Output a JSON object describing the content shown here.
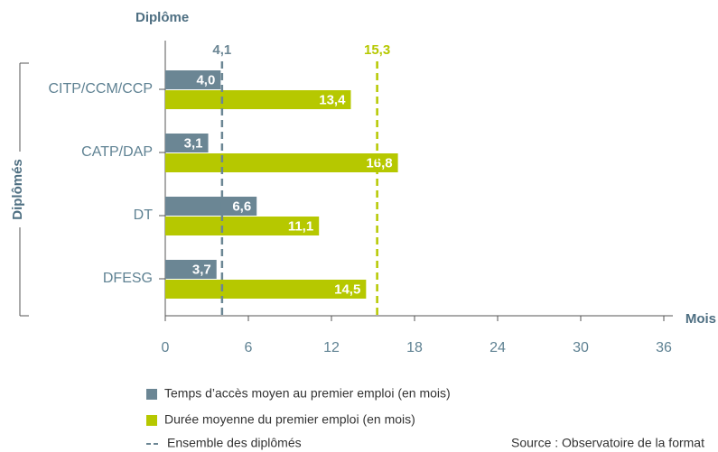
{
  "chart_data": {
    "type": "bar",
    "orientation": "horizontal",
    "title": "Diplôme",
    "y_label": "Diplômés",
    "x_label": "Mois",
    "categories": [
      "CITP/CCM/CCP",
      "CATP/DAP",
      "DT",
      "DFESG"
    ],
    "series": [
      {
        "name": "Temps d’accès moyen au premier emploi (en mois)",
        "color": "#6b8694",
        "values": [
          4.0,
          3.1,
          6.6,
          3.7
        ],
        "value_labels": [
          "4,0",
          "3,1",
          "6,6",
          "3,7"
        ]
      },
      {
        "name": "Durée moyenne du premier emploi (en mois)",
        "color": "#b6c800",
        "values": [
          13.4,
          16.8,
          11.1,
          14.5
        ],
        "value_labels": [
          "13,4",
          "16,8",
          "11,1",
          "14,5"
        ]
      }
    ],
    "reference_lines": [
      {
        "value": 4.1,
        "label": "4,1",
        "color": "#6b8694"
      },
      {
        "value": 15.3,
        "label": "15,3",
        "color": "#b6c800"
      }
    ],
    "reference_legend": "Ensemble des diplômés",
    "xlim": [
      0,
      36
    ],
    "xticks": [
      0,
      6,
      12,
      18,
      24,
      30,
      36
    ],
    "source": "Source : Observatoire de la format"
  }
}
